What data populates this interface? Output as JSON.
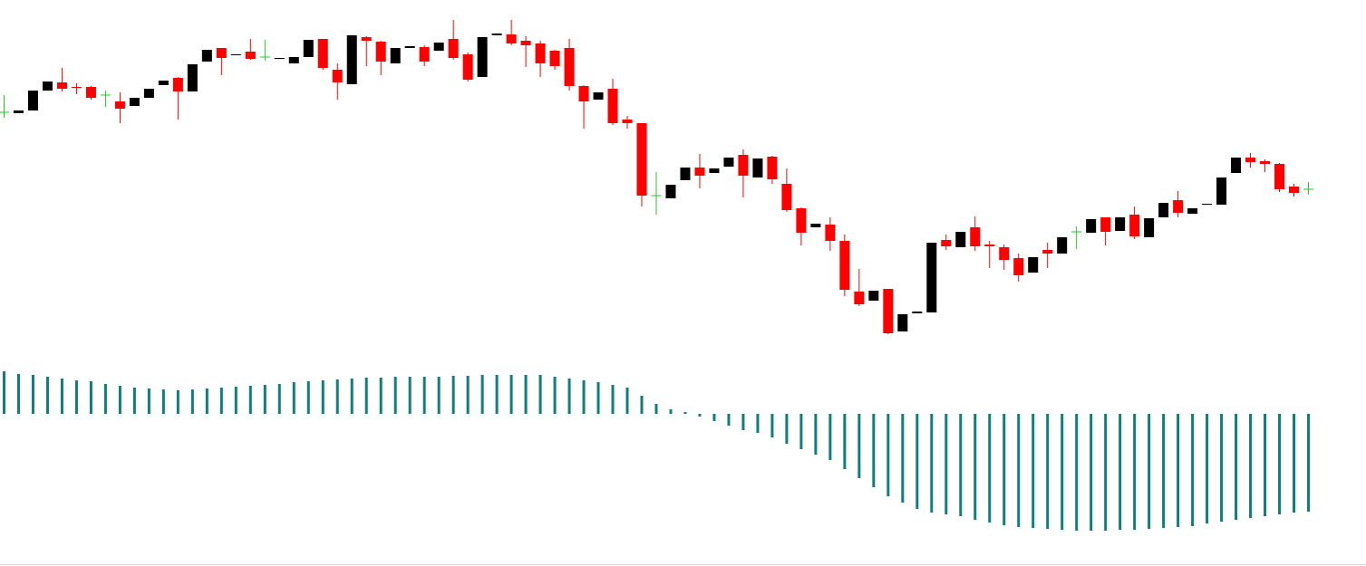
{
  "chart_data": [
    {
      "type": "candlestick",
      "up_color": "#000000",
      "down_color": "#ff0000",
      "doji_color": "#22cc22",
      "ylim": [
        120,
        490
      ],
      "open": [
        376,
        375,
        378,
        400,
        409,
        404,
        404,
        395,
        388,
        383,
        392,
        406,
        414,
        399,
        432,
        447,
        439,
        443,
        437,
        435,
        430,
        437,
        457,
        423,
        407,
        459,
        454,
        430,
        447,
        448,
        444,
        457,
        440,
        415,
        461,
        462,
        455,
        452,
        444,
        447,
        405,
        390,
        402,
        368,
        364,
        284,
        281,
        301,
        315,
        309,
        316,
        329,
        304,
        327,
        297,
        270,
        249,
        252,
        234,
        178,
        168,
        181,
        134,
        154,
        155,
        235,
        227,
        249,
        230,
        227,
        215,
        199,
        224,
        220,
        244,
        243,
        260,
        245,
        263,
        238,
        260,
        279,
        264,
        274,
        274,
        309,
        326,
        322,
        319,
        294,
        291
      ],
      "high": [
        395,
        378,
        400,
        410,
        425,
        408,
        405,
        400,
        398,
        392,
        402,
        411,
        415,
        429,
        445,
        447,
        440,
        457,
        456,
        436,
        437,
        456,
        457,
        430,
        461,
        460,
        455,
        447,
        449,
        450,
        453,
        478,
        442,
        459,
        463,
        478,
        460,
        455,
        445,
        457,
        406,
        398,
        413,
        372,
        364,
        310,
        296,
        315,
        330,
        314,
        326,
        335,
        325,
        328,
        314,
        271,
        253,
        260,
        241,
        203,
        179,
        181,
        153,
        156,
        232,
        241,
        244,
        261,
        234,
        230,
        220,
        216,
        232,
        238,
        250,
        258,
        260,
        260,
        272,
        259,
        276,
        289,
        270,
        275,
        304,
        326,
        331,
        324,
        320,
        297,
        299
      ],
      "low": [
        370,
        375,
        378,
        400,
        399,
        396,
        390,
        382,
        364,
        383,
        392,
        406,
        368,
        399,
        432,
        417,
        439,
        434,
        433,
        435,
        430,
        437,
        423,
        390,
        407,
        427,
        417,
        430,
        447,
        427,
        444,
        434,
        410,
        415,
        461,
        450,
        426,
        415,
        423,
        400,
        358,
        390,
        362,
        358,
        272,
        263,
        281,
        301,
        292,
        309,
        316,
        282,
        304,
        297,
        266,
        229,
        249,
        223,
        173,
        162,
        168,
        131,
        134,
        154,
        155,
        224,
        227,
        223,
        204,
        202,
        189,
        199,
        204,
        220,
        225,
        243,
        229,
        245,
        236,
        238,
        260,
        260,
        264,
        274,
        274,
        309,
        315,
        310,
        288,
        283,
        285
      ],
      "close": [
        376,
        378,
        400,
        410,
        402,
        403,
        392,
        395,
        380,
        392,
        402,
        411,
        399,
        429,
        445,
        436,
        440,
        435,
        437,
        436,
        437,
        456,
        425,
        409,
        461,
        455,
        432,
        447,
        449,
        432,
        453,
        436,
        412,
        459,
        463,
        452,
        450,
        430,
        427,
        405,
        388,
        398,
        364,
        364,
        284,
        284,
        296,
        315,
        306,
        314,
        326,
        306,
        325,
        302,
        268,
        243,
        253,
        234,
        180,
        164,
        179,
        132,
        153,
        156,
        232,
        228,
        244,
        228,
        228,
        213,
        196,
        216,
        220,
        238,
        244,
        258,
        244,
        260,
        239,
        259,
        276,
        265,
        270,
        275,
        304,
        326,
        321,
        319,
        291,
        287,
        291
      ]
    },
    {
      "type": "bar",
      "color": "#0f7f7c",
      "ylim": [
        -140,
        50
      ],
      "values": [
        47,
        44,
        43,
        41,
        39,
        37,
        36,
        33,
        31,
        29,
        28,
        27,
        26,
        27,
        28,
        29,
        30,
        31,
        32,
        33,
        35,
        36,
        37,
        38,
        39,
        40,
        40,
        41,
        41,
        41,
        41,
        42,
        42,
        43,
        43,
        43,
        43,
        43,
        41,
        39,
        37,
        35,
        32,
        29,
        20,
        11,
        5,
        2,
        -3,
        -8,
        -13,
        -18,
        -21,
        -26,
        -33,
        -39,
        -45,
        -51,
        -61,
        -71,
        -81,
        -91,
        -98,
        -105,
        -109,
        -111,
        -113,
        -117,
        -120,
        -123,
        -125,
        -126,
        -127,
        -128,
        -129,
        -129,
        -129,
        -128,
        -128,
        -127,
        -126,
        -125,
        -124,
        -121,
        -119,
        -117,
        -115,
        -113,
        -111,
        -109,
        -108
      ]
    }
  ]
}
